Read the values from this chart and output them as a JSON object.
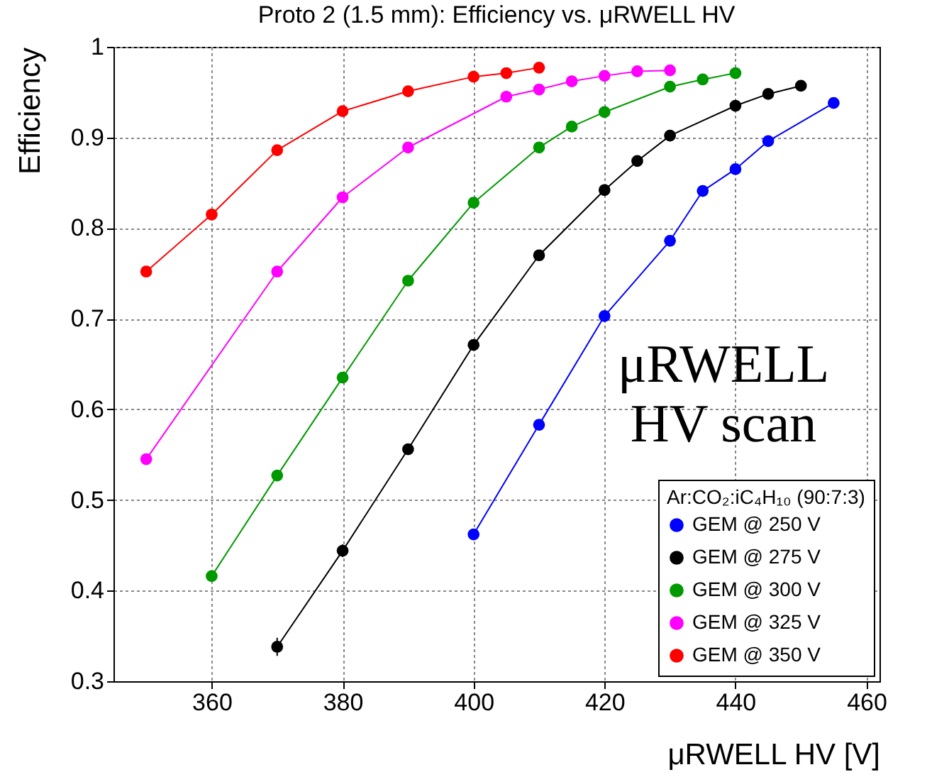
{
  "chart_data": {
    "type": "line",
    "title": "Proto 2 (1.5 mm): Efficiency vs.  μRWELL HV",
    "xlabel": "μRWELL HV [V]",
    "ylabel": "Efficiency",
    "legend_title": "Ar:CO₂:iC₄H₁₀ (90:7:3)",
    "annotations": [
      "μRWELL\nHV scan"
    ],
    "xlim": [
      345,
      462
    ],
    "xticks": [
      360,
      380,
      400,
      420,
      440,
      460
    ],
    "ylim": [
      0.3,
      1
    ],
    "yticks": [
      0.3,
      0.4,
      0.5,
      0.6,
      0.7,
      0.8,
      0.9,
      1
    ],
    "grid": true,
    "legend": "bottom right",
    "marker": "circle",
    "line_style": "solid",
    "series": [
      {
        "name": "GEM @ 250 V",
        "color": "#0000ff",
        "x": [
          400,
          410,
          420,
          430,
          435,
          440,
          445,
          455
        ],
        "values": [
          0.462,
          0.583,
          0.703,
          0.786,
          0.841,
          0.865,
          0.896,
          0.938
        ]
      },
      {
        "name": "GEM @ 275 V",
        "color": "#000000",
        "x": [
          370,
          380,
          390,
          400,
          410,
          420,
          425,
          430,
          440,
          445,
          450
        ],
        "values": [
          0.338,
          0.444,
          0.556,
          0.671,
          0.77,
          0.842,
          0.874,
          0.902,
          0.935,
          0.948,
          0.957
        ],
        "errors": [
          0.01,
          0.007,
          null,
          null,
          null,
          null,
          null,
          null,
          null,
          null,
          null
        ]
      },
      {
        "name": "GEM @ 300 V",
        "color": "#009900",
        "x": [
          360,
          370,
          380,
          390,
          400,
          410,
          415,
          420,
          430,
          435,
          440
        ],
        "values": [
          0.416,
          0.527,
          0.635,
          0.742,
          0.828,
          0.889,
          0.912,
          0.928,
          0.956,
          0.964,
          0.971
        ]
      },
      {
        "name": "GEM @ 325 V",
        "color": "#ff00ff",
        "x": [
          350,
          370,
          380,
          390,
          405,
          410,
          415,
          420,
          425,
          430
        ],
        "values": [
          0.545,
          0.752,
          0.834,
          0.889,
          0.945,
          0.953,
          0.962,
          0.968,
          0.973,
          0.974
        ]
      },
      {
        "name": "GEM @ 350 V",
        "color": "#ff0000",
        "x": [
          350,
          360,
          370,
          380,
          390,
          400,
          405,
          410
        ],
        "values": [
          0.752,
          0.815,
          0.886,
          0.929,
          0.951,
          0.967,
          0.971,
          0.977
        ]
      }
    ]
  }
}
